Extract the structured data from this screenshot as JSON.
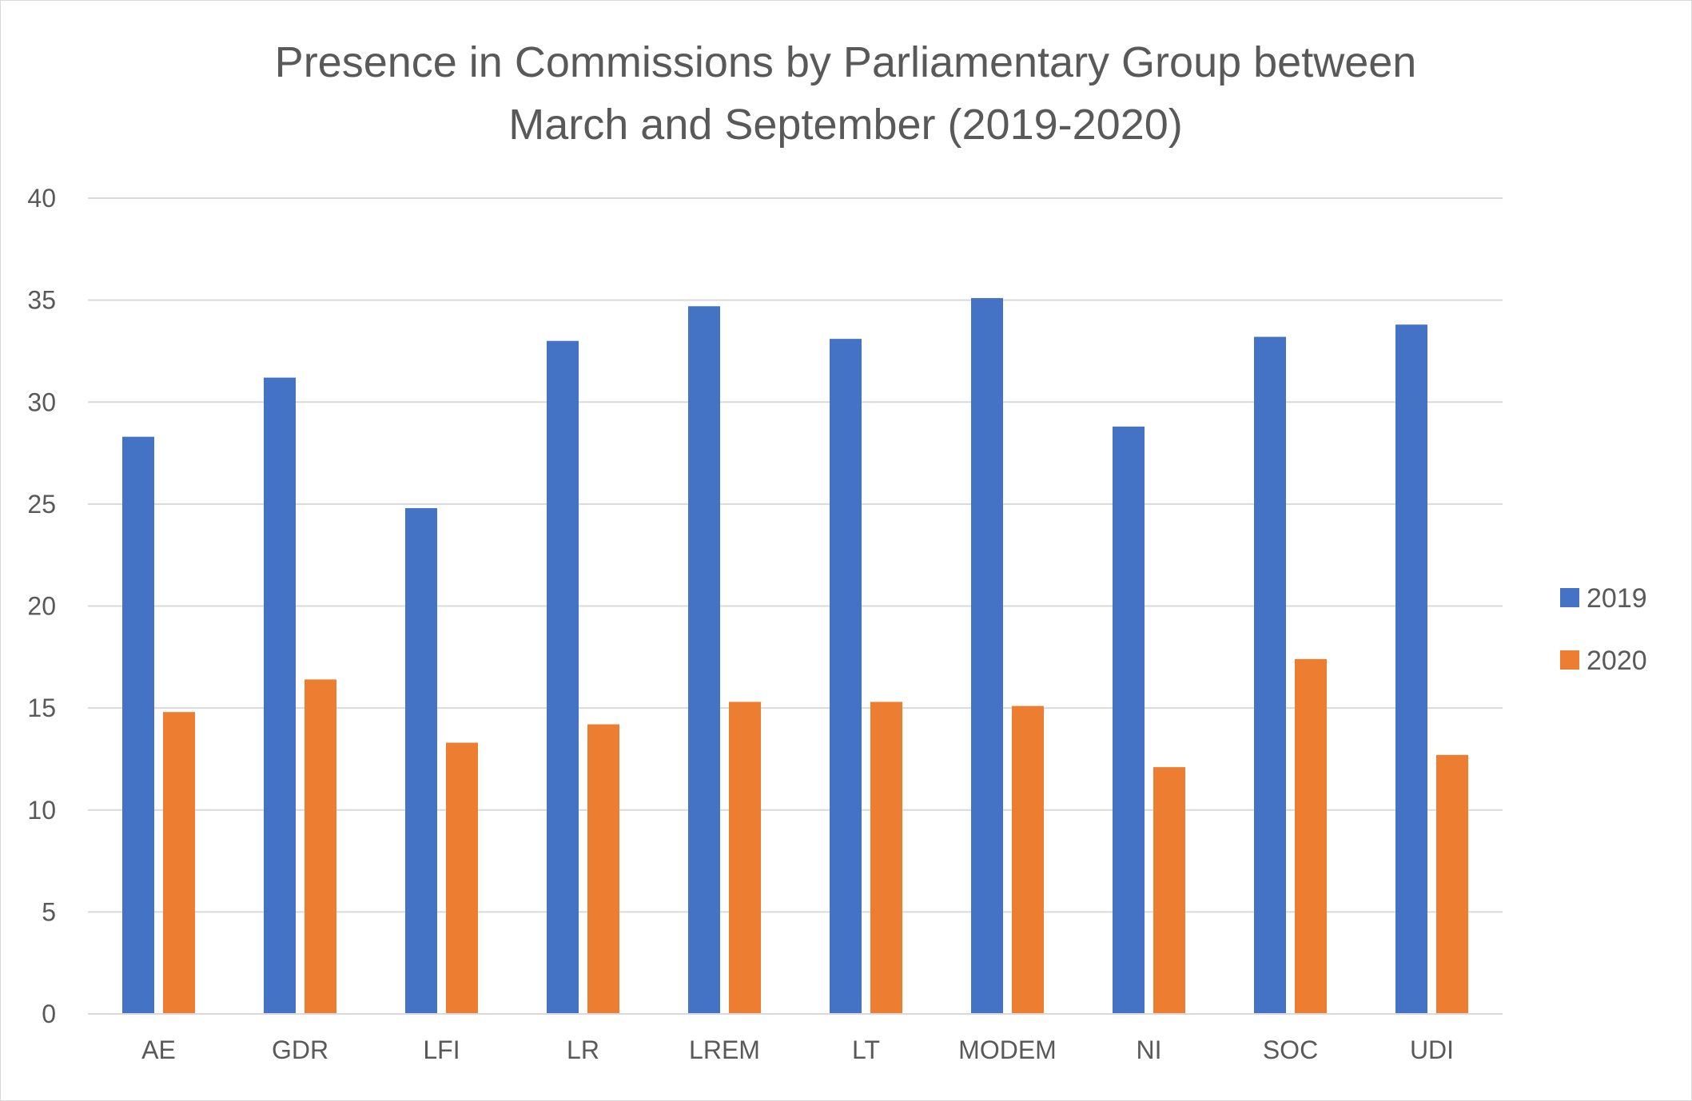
{
  "chart_data": {
    "type": "bar",
    "title_lines": [
      "Presence in Commissions by Parliamentary Group between",
      "March and September (2019-2020)"
    ],
    "categories": [
      "AE",
      "GDR",
      "LFI",
      "LR",
      "LREM",
      "LT",
      "MODEM",
      "NI",
      "SOC",
      "UDI"
    ],
    "series": [
      {
        "name": "2019",
        "color": "#4472c4",
        "values": [
          28.3,
          31.2,
          24.8,
          33.0,
          34.7,
          33.1,
          35.1,
          28.8,
          33.2,
          33.8
        ]
      },
      {
        "name": "2020",
        "color": "#ed7d31",
        "values": [
          14.8,
          16.4,
          13.3,
          14.2,
          15.3,
          15.3,
          15.1,
          12.1,
          17.4,
          12.7
        ]
      }
    ],
    "ylim": [
      0,
      40
    ],
    "yticks": [
      "0",
      "5",
      "10",
      "15",
      "20",
      "25",
      "30",
      "35",
      "40"
    ],
    "grid": true,
    "legend_position": "right"
  }
}
